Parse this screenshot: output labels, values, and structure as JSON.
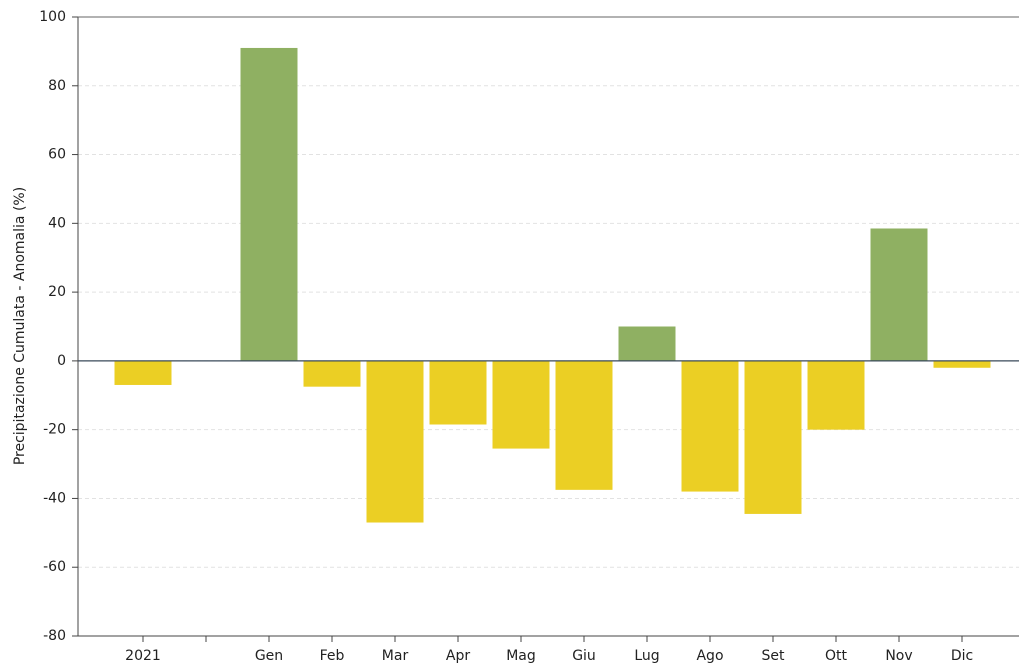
{
  "chart_data": {
    "type": "bar",
    "y_label": "Precipitazione Cumulata - Anomalia (%)",
    "categories": [
      "2021",
      null,
      "Gen",
      "Feb",
      "Mar",
      "Apr",
      "Mag",
      "Giu",
      "Lug",
      "Ago",
      "Set",
      "Ott",
      "Nov",
      "Dic"
    ],
    "values": [
      -7,
      null,
      91,
      -7.5,
      -47,
      -18.5,
      -25.5,
      -37.5,
      10,
      -38,
      -44.5,
      -20,
      38.5,
      -2
    ],
    "positive_color": "#8fb062",
    "negative_color": "#ebcf24",
    "ylim": [
      -80,
      100
    ],
    "yticks": [
      -80,
      -60,
      -40,
      -20,
      0,
      20,
      40,
      60,
      80,
      100
    ],
    "grid": true
  }
}
